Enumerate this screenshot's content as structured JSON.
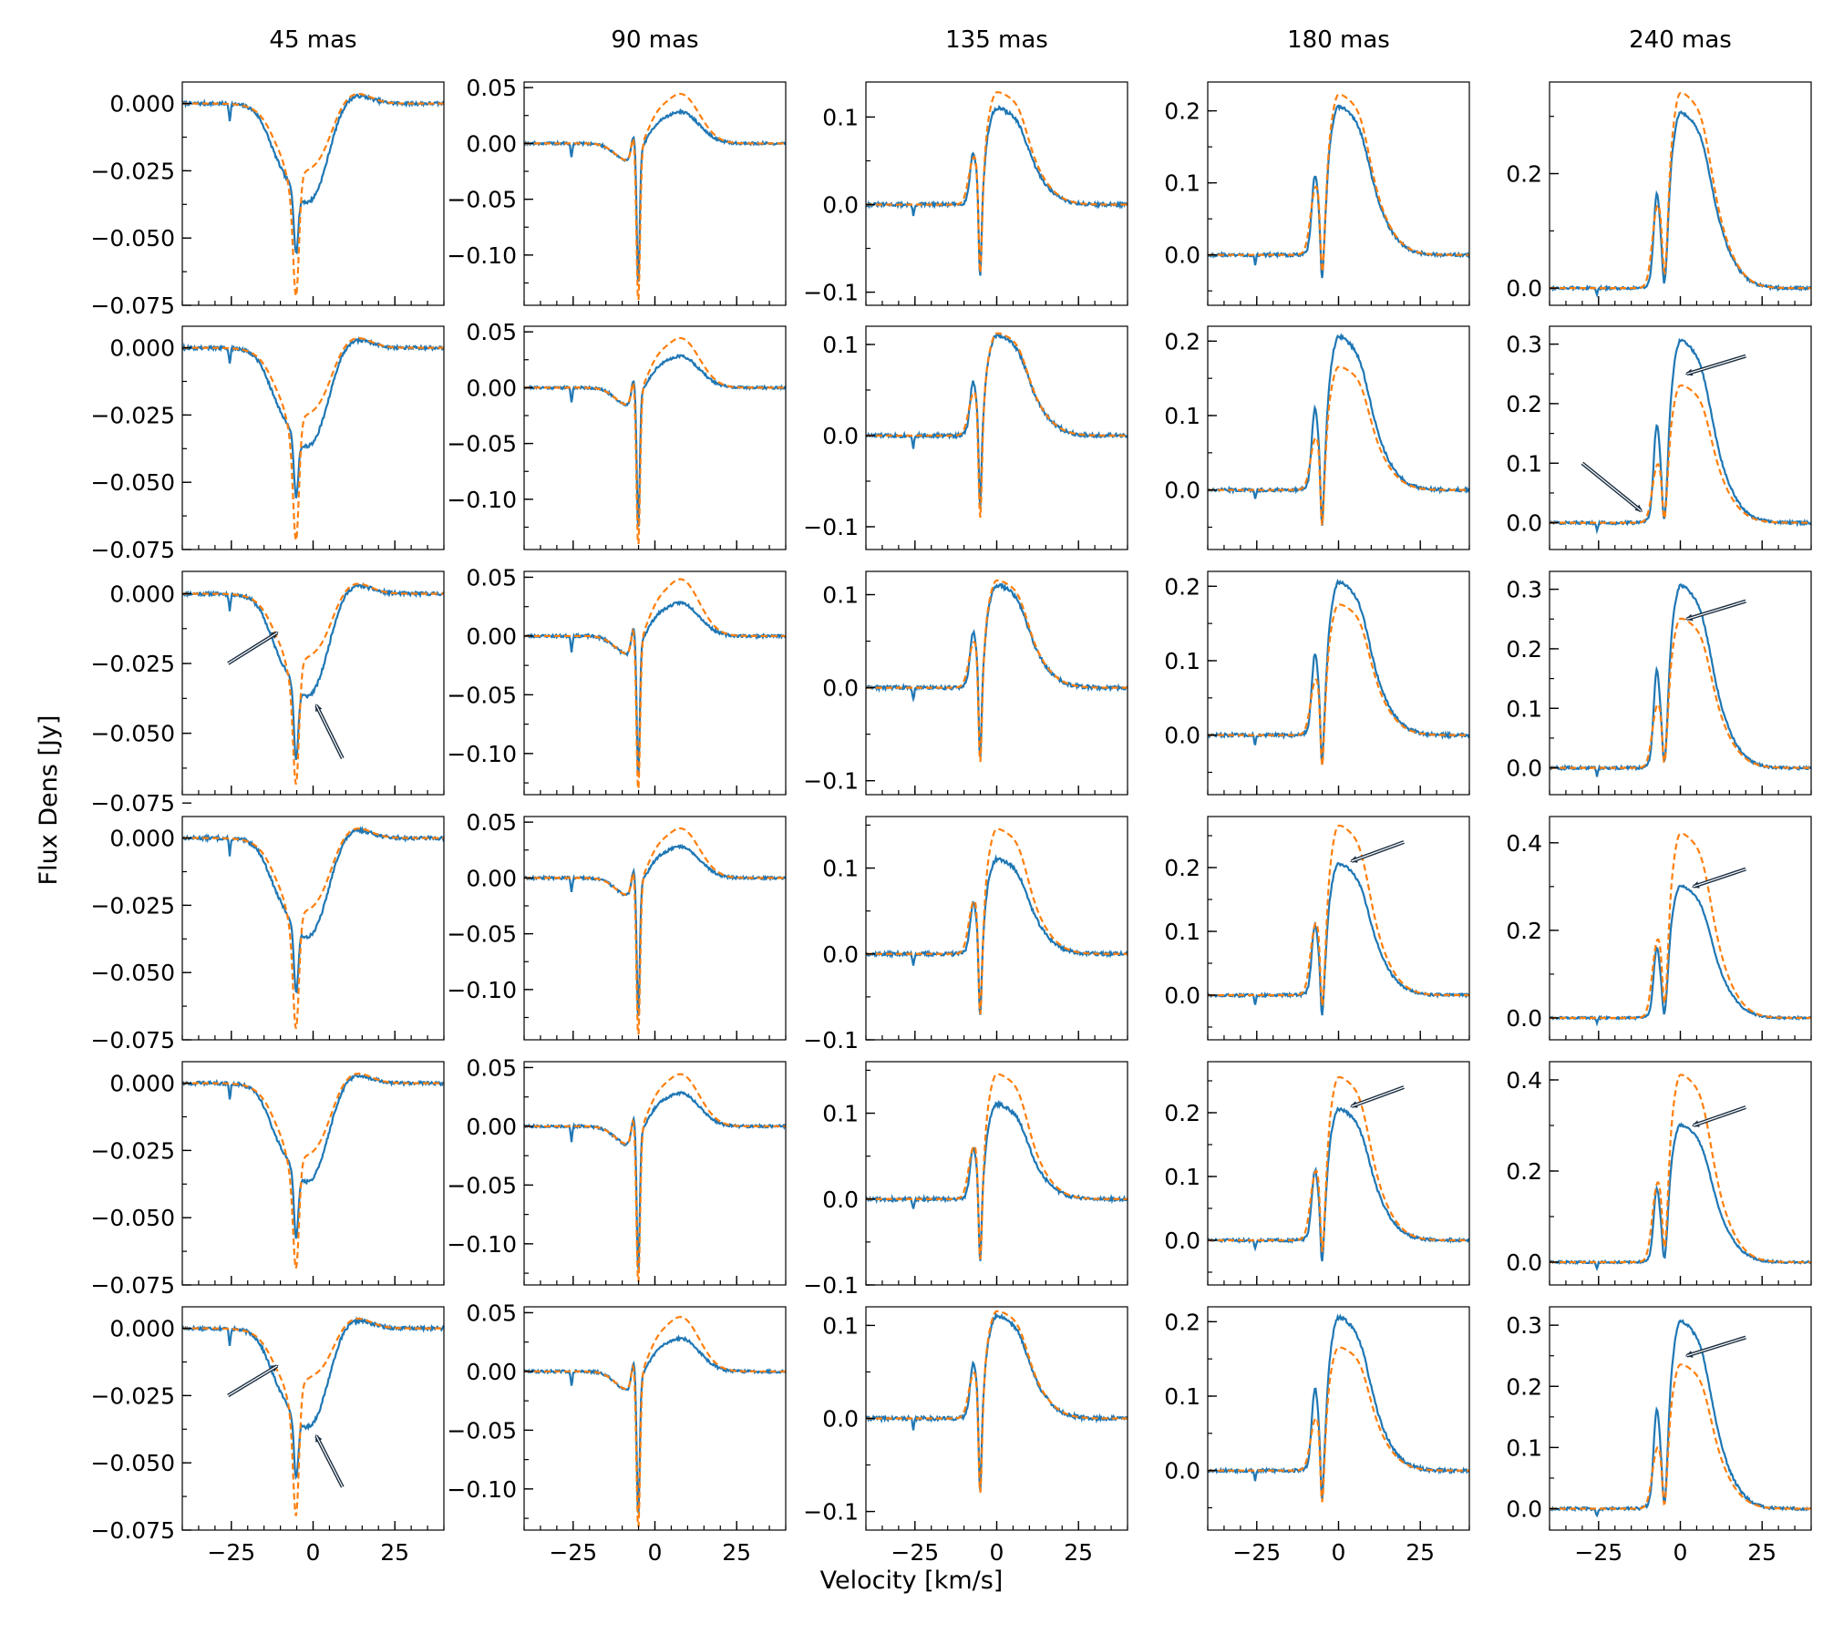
{
  "figure": {
    "xlabel": "Velocity [km/s]",
    "ylabel": "Flux Dens [Jy]",
    "column_titles": [
      "45 mas",
      "90 mas",
      "135 mas",
      "180 mas",
      "240 mas"
    ],
    "series_colors": {
      "observed": "#1f77b4",
      "model": "#ff7f0e"
    },
    "arrow_color": "#1b2e40"
  },
  "chart_data": {
    "type": "line",
    "layout": {
      "rows": 6,
      "cols": 5
    },
    "xlim": [
      -40,
      40
    ],
    "x_ticks": [
      -25,
      0,
      25
    ],
    "x_tick_labels": [
      "−25",
      "0",
      "25"
    ],
    "series": [
      {
        "key": "observed",
        "style": "solid"
      },
      {
        "key": "model",
        "style": "dashed"
      }
    ],
    "columns": [
      {
        "title": "45 mas",
        "kind": "absorption",
        "ticks": [
          0.0,
          -0.025,
          -0.05,
          -0.075
        ],
        "tick_labels": [
          "0.000",
          "−0.025",
          "−0.050",
          "−0.075"
        ],
        "panels": [
          {
            "ylim": [
              -0.075,
              0.008
            ],
            "obs": {
              "depth": -0.062,
              "shoulder": -0.04,
              "peak": 0.004
            },
            "model": {
              "depth": -0.072,
              "shoulder": -0.028,
              "peak": 0.004
            }
          },
          {
            "ylim": [
              -0.075,
              0.008
            ],
            "obs": {
              "depth": -0.062,
              "shoulder": -0.04,
              "peak": 0.004
            },
            "model": {
              "depth": -0.072,
              "shoulder": -0.028,
              "peak": 0.004
            }
          },
          {
            "ylim": [
              -0.072,
              0.008
            ],
            "obs": {
              "depth": -0.066,
              "shoulder": -0.04,
              "peak": 0.004
            },
            "model": {
              "depth": -0.068,
              "shoulder": -0.026,
              "peak": 0.004
            }
          },
          {
            "ylim": [
              -0.075,
              0.008
            ],
            "obs": {
              "depth": -0.064,
              "shoulder": -0.04,
              "peak": 0.004
            },
            "model": {
              "depth": -0.072,
              "shoulder": -0.03,
              "peak": 0.004
            }
          },
          {
            "ylim": [
              -0.075,
              0.008
            ],
            "obs": {
              "depth": -0.064,
              "shoulder": -0.04,
              "peak": 0.004
            },
            "model": {
              "depth": -0.07,
              "shoulder": -0.03,
              "peak": 0.004
            }
          },
          {
            "ylim": [
              -0.075,
              0.008
            ],
            "obs": {
              "depth": -0.062,
              "shoulder": -0.04,
              "peak": 0.004
            },
            "model": {
              "depth": -0.068,
              "shoulder": -0.022,
              "peak": 0.004
            }
          }
        ]
      },
      {
        "title": "90 mas",
        "kind": "pcygni",
        "ticks": [
          0.05,
          0.0,
          -0.05,
          -0.1
        ],
        "tick_labels": [
          "0.05",
          "0.00",
          "−0.05",
          "−0.10"
        ],
        "panels": [
          {
            "ylim": [
              -0.145,
              0.055
            ],
            "obs": {
              "peak": 0.028,
              "dip": -0.12
            },
            "model": {
              "peak": 0.044,
              "dip": -0.138
            }
          },
          {
            "ylim": [
              -0.145,
              0.055
            ],
            "obs": {
              "peak": 0.028,
              "dip": -0.12
            },
            "model": {
              "peak": 0.044,
              "dip": -0.138
            }
          },
          {
            "ylim": [
              -0.135,
              0.055
            ],
            "obs": {
              "peak": 0.028,
              "dip": -0.115
            },
            "model": {
              "peak": 0.048,
              "dip": -0.128
            }
          },
          {
            "ylim": [
              -0.145,
              0.055
            ],
            "obs": {
              "peak": 0.028,
              "dip": -0.12
            },
            "model": {
              "peak": 0.044,
              "dip": -0.138
            }
          },
          {
            "ylim": [
              -0.135,
              0.055
            ],
            "obs": {
              "peak": 0.028,
              "dip": -0.118
            },
            "model": {
              "peak": 0.044,
              "dip": -0.13
            }
          },
          {
            "ylim": [
              -0.135,
              0.055
            ],
            "obs": {
              "peak": 0.028,
              "dip": -0.118
            },
            "model": {
              "peak": 0.046,
              "dip": -0.13
            }
          }
        ]
      },
      {
        "title": "135 mas",
        "kind": "emission",
        "ticks": [
          0.1,
          0.0,
          -0.1
        ],
        "tick_labels": [
          "0.1",
          "0.0",
          "−0.1"
        ],
        "panels": [
          {
            "ylim": [
              -0.115,
              0.14
            ],
            "obs": {
              "peak": 0.11,
              "dip": -0.095
            },
            "model": {
              "peak": 0.128,
              "dip": -0.1
            }
          },
          {
            "ylim": [
              -0.125,
              0.12
            ],
            "obs": {
              "peak": 0.11,
              "dip": -0.09
            },
            "model": {
              "peak": 0.112,
              "dip": -0.11
            }
          },
          {
            "ylim": [
              -0.115,
              0.125
            ],
            "obs": {
              "peak": 0.11,
              "dip": -0.09
            },
            "model": {
              "peak": 0.115,
              "dip": -0.1
            }
          },
          {
            "ylim": [
              -0.1,
              0.16
            ],
            "obs": {
              "peak": 0.11,
              "dip": -0.085
            },
            "model": {
              "peak": 0.145,
              "dip": -0.095
            }
          },
          {
            "ylim": [
              -0.1,
              0.16
            ],
            "obs": {
              "peak": 0.11,
              "dip": -0.085
            },
            "model": {
              "peak": 0.145,
              "dip": -0.095
            }
          },
          {
            "ylim": [
              -0.12,
              0.12
            ],
            "obs": {
              "peak": 0.11,
              "dip": -0.09
            },
            "model": {
              "peak": 0.115,
              "dip": -0.1
            }
          }
        ]
      },
      {
        "title": "180 mas",
        "kind": "emission",
        "ticks": [
          0.2,
          0.1,
          0.0
        ],
        "tick_labels": [
          "0.2",
          "0.1",
          "0.0"
        ],
        "panels": [
          {
            "ylim": [
              -0.07,
              0.24
            ],
            "obs": {
              "peak": 0.205,
              "dip": -0.055
            },
            "model": {
              "peak": 0.222,
              "dip": -0.06
            }
          },
          {
            "ylim": [
              -0.08,
              0.22
            ],
            "obs": {
              "peak": 0.205,
              "dip": -0.07
            },
            "model": {
              "peak": 0.165,
              "dip": -0.075
            }
          },
          {
            "ylim": [
              -0.08,
              0.22
            ],
            "obs": {
              "peak": 0.205,
              "dip": -0.06
            },
            "model": {
              "peak": 0.175,
              "dip": -0.07
            }
          },
          {
            "ylim": [
              -0.07,
              0.28
            ],
            "obs": {
              "peak": 0.205,
              "dip": -0.055
            },
            "model": {
              "peak": 0.265,
              "dip": -0.06
            }
          },
          {
            "ylim": [
              -0.07,
              0.28
            ],
            "obs": {
              "peak": 0.205,
              "dip": -0.055
            },
            "model": {
              "peak": 0.255,
              "dip": -0.06
            }
          },
          {
            "ylim": [
              -0.08,
              0.22
            ],
            "obs": {
              "peak": 0.205,
              "dip": -0.06
            },
            "model": {
              "peak": 0.165,
              "dip": -0.07
            }
          }
        ]
      },
      {
        "title": "240 mas",
        "kind": "emission",
        "panels": [
          {
            "ylim": [
              -0.03,
              0.36
            ],
            "ticks": [
              0.2,
              0.0
            ],
            "tick_labels": [
              "0.2",
              "0.0"
            ],
            "obs": {
              "peak": 0.305,
              "dip": -0.02
            },
            "model": {
              "peak": 0.34,
              "dip": -0.025
            }
          },
          {
            "ylim": [
              -0.045,
              0.33
            ],
            "ticks": [
              0.3,
              0.2,
              0.1,
              0.0
            ],
            "tick_labels": [
              "0.3",
              "0.2",
              "0.1",
              "0.0"
            ],
            "obs": {
              "peak": 0.305,
              "dip": -0.025
            },
            "model": {
              "peak": 0.23,
              "dip": -0.03
            }
          },
          {
            "ylim": [
              -0.045,
              0.33
            ],
            "ticks": [
              0.3,
              0.2,
              0.1,
              0.0
            ],
            "tick_labels": [
              "0.3",
              "0.2",
              "0.1",
              "0.0"
            ],
            "obs": {
              "peak": 0.305,
              "dip": -0.02
            },
            "model": {
              "peak": 0.25,
              "dip": -0.03
            }
          },
          {
            "ylim": [
              -0.05,
              0.46
            ],
            "ticks": [
              0.4,
              0.2,
              0.0
            ],
            "tick_labels": [
              "0.4",
              "0.2",
              "0.0"
            ],
            "obs": {
              "peak": 0.3,
              "dip": -0.02
            },
            "model": {
              "peak": 0.42,
              "dip": -0.03
            }
          },
          {
            "ylim": [
              -0.05,
              0.44
            ],
            "ticks": [
              0.4,
              0.2,
              0.0
            ],
            "tick_labels": [
              "0.4",
              "0.2",
              "0.0"
            ],
            "obs": {
              "peak": 0.3,
              "dip": -0.02
            },
            "model": {
              "peak": 0.41,
              "dip": -0.03
            }
          },
          {
            "ylim": [
              -0.035,
              0.33
            ],
            "ticks": [
              0.3,
              0.2,
              0.1,
              0.0
            ],
            "tick_labels": [
              "0.3",
              "0.2",
              "0.1",
              "0.0"
            ],
            "obs": {
              "peak": 0.305,
              "dip": -0.02
            },
            "model": {
              "peak": 0.235,
              "dip": -0.03
            }
          }
        ]
      }
    ],
    "annotations": [
      {
        "type": "arrow",
        "row": 1,
        "col": 4,
        "from": [
          20,
          0.28
        ],
        "to": [
          2,
          0.25
        ]
      },
      {
        "type": "arrow",
        "row": 1,
        "col": 4,
        "from": [
          -30,
          0.1
        ],
        "to": [
          -12,
          0.02
        ]
      },
      {
        "type": "arrow",
        "row": 2,
        "col": 4,
        "from": [
          20,
          0.28
        ],
        "to": [
          2,
          0.25
        ]
      },
      {
        "type": "arrow",
        "row": 3,
        "col": 3,
        "from": [
          20,
          0.24
        ],
        "to": [
          4,
          0.21
        ]
      },
      {
        "type": "arrow",
        "row": 3,
        "col": 4,
        "from": [
          20,
          0.34
        ],
        "to": [
          4,
          0.3
        ]
      },
      {
        "type": "arrow",
        "row": 4,
        "col": 3,
        "from": [
          20,
          0.24
        ],
        "to": [
          4,
          0.21
        ]
      },
      {
        "type": "arrow",
        "row": 4,
        "col": 4,
        "from": [
          20,
          0.34
        ],
        "to": [
          4,
          0.3
        ]
      },
      {
        "type": "arrow",
        "row": 5,
        "col": 4,
        "from": [
          20,
          0.28
        ],
        "to": [
          2,
          0.25
        ]
      },
      {
        "type": "arrow",
        "row": 2,
        "col": 0,
        "from": [
          -26,
          -0.025
        ],
        "to": [
          -11,
          -0.014
        ]
      },
      {
        "type": "arrow",
        "row": 2,
        "col": 0,
        "from": [
          9,
          -0.059
        ],
        "to": [
          1,
          -0.04
        ]
      },
      {
        "type": "arrow",
        "row": 5,
        "col": 0,
        "from": [
          -26,
          -0.025
        ],
        "to": [
          -11,
          -0.014
        ]
      },
      {
        "type": "arrow",
        "row": 5,
        "col": 0,
        "from": [
          9,
          -0.059
        ],
        "to": [
          1,
          -0.04
        ]
      }
    ]
  }
}
